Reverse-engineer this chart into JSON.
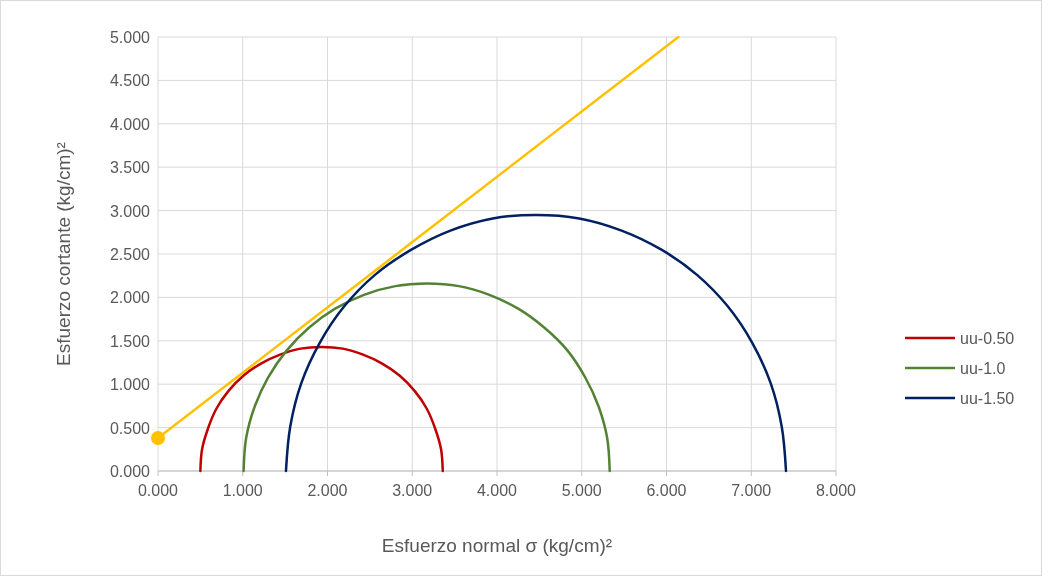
{
  "chart_data": {
    "type": "line",
    "xlabel": "Esfuerzo normal σ (kg/cm)²",
    "ylabel": "Esfuerzo cortante (kg/cm)²",
    "xlim": [
      0,
      8
    ],
    "xticks": [
      {
        "value": 0,
        "label": "0.000"
      },
      {
        "value": 1,
        "label": "1.000"
      },
      {
        "value": 2,
        "label": "2.000"
      },
      {
        "value": 3,
        "label": "3.000"
      },
      {
        "value": 4,
        "label": "4.000"
      },
      {
        "value": 5,
        "label": "5.000"
      },
      {
        "value": 6,
        "label": "6.000"
      },
      {
        "value": 7,
        "label": "7.000"
      },
      {
        "value": 8,
        "label": "8.000"
      }
    ],
    "ylim": [
      0,
      5
    ],
    "yticks": [
      {
        "value": 0,
        "label": "0.000"
      },
      {
        "value": 0.5,
        "label": "0.500"
      },
      {
        "value": 1,
        "label": "1.000"
      },
      {
        "value": 1.5,
        "label": "1.500"
      },
      {
        "value": 2,
        "label": "2.000"
      },
      {
        "value": 2.5,
        "label": "2.500"
      },
      {
        "value": 3,
        "label": "3.000"
      },
      {
        "value": 3.5,
        "label": "3.500"
      },
      {
        "value": 4,
        "label": "4.000"
      },
      {
        "value": 4.5,
        "label": "4.500"
      },
      {
        "value": 5,
        "label": "5.000"
      }
    ],
    "grid": true,
    "legend": "right",
    "marker": "none",
    "line_style": "solid",
    "series": [
      {
        "name": "uu-0.50",
        "color": "#c00000",
        "x": [
          0.5,
          0.52,
          0.59,
          0.69,
          0.83,
          1.01,
          1.22,
          1.44,
          1.68,
          1.93,
          2.18,
          2.42,
          2.64,
          2.85,
          3.03,
          3.17,
          3.27,
          3.34,
          3.36
        ],
        "values": [
          0,
          0.25,
          0.49,
          0.72,
          0.92,
          1.1,
          1.24,
          1.34,
          1.41,
          1.43,
          1.41,
          1.34,
          1.24,
          1.1,
          0.92,
          0.72,
          0.49,
          0.25,
          0
        ]
      },
      {
        "name": "uu-1.0",
        "color": "#548235",
        "x": [
          1.01,
          1.04,
          1.14,
          1.3,
          1.52,
          1.78,
          2.09,
          2.43,
          2.8,
          3.17,
          3.55,
          3.91,
          4.25,
          4.56,
          4.83,
          5.04,
          5.2,
          5.3,
          5.33
        ],
        "values": [
          0,
          0.38,
          0.74,
          1.08,
          1.39,
          1.65,
          1.87,
          2.03,
          2.13,
          2.16,
          2.13,
          2.03,
          1.87,
          1.65,
          1.39,
          1.08,
          0.74,
          0.38,
          0
        ]
      },
      {
        "name": "uu-1.50",
        "color": "#002060",
        "x": [
          1.51,
          1.56,
          1.69,
          1.91,
          2.2,
          2.56,
          2.99,
          3.45,
          3.95,
          4.46,
          4.97,
          5.47,
          5.94,
          6.36,
          6.72,
          7.01,
          7.23,
          7.36,
          7.41
        ],
        "values": [
          0,
          0.51,
          1.01,
          1.48,
          1.9,
          2.26,
          2.55,
          2.77,
          2.91,
          2.95,
          2.91,
          2.77,
          2.55,
          2.26,
          1.9,
          1.48,
          1.01,
          0.51,
          0
        ]
      },
      {
        "color": "#ffc000",
        "x": [
          0,
          6.14
        ],
        "values": [
          0.38,
          5.0
        ]
      },
      {
        "type": "scatter",
        "marker": "circle",
        "color": "#ffc000",
        "x": [
          0
        ],
        "values": [
          0.38
        ]
      }
    ]
  }
}
